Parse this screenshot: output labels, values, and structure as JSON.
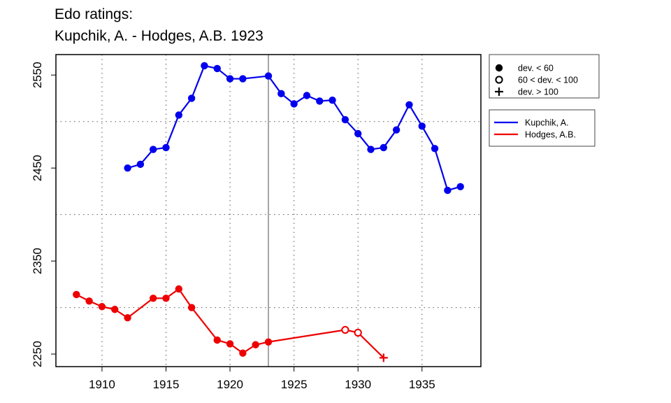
{
  "chart_data": {
    "type": "line",
    "title_lines": [
      "Edo ratings:",
      "Kupchik, A. - Hodges, A.B. 1923"
    ],
    "xlabel": "",
    "ylabel": "",
    "xlim": [
      1906.4,
      1939.6
    ],
    "ylim": [
      2236.5,
      2572
    ],
    "x_ticks": [
      1910,
      1915,
      1920,
      1925,
      1930,
      1935
    ],
    "y_ticks": [
      2250,
      2350,
      2450,
      2550
    ],
    "grid": true,
    "grid_x": [
      1910,
      1915,
      1920,
      1925,
      1930,
      1935
    ],
    "grid_y": [
      2300,
      2400,
      2500
    ],
    "reference_line_x": 1923,
    "marker_legend": [
      {
        "marker": "filled",
        "label": "dev. < 60"
      },
      {
        "marker": "open",
        "label": "60 < dev. < 100"
      },
      {
        "marker": "plus",
        "label": "dev. > 100"
      }
    ],
    "legend_position": "outside-right-top",
    "series": [
      {
        "name": "Kupchik, A.",
        "color": "#0000ee",
        "points": [
          {
            "x": 1912,
            "y": 2450,
            "m": "filled"
          },
          {
            "x": 1913,
            "y": 2454,
            "m": "filled"
          },
          {
            "x": 1914,
            "y": 2470,
            "m": "filled"
          },
          {
            "x": 1915,
            "y": 2472,
            "m": "filled"
          },
          {
            "x": 1916,
            "y": 2507,
            "m": "filled"
          },
          {
            "x": 1917,
            "y": 2525,
            "m": "filled"
          },
          {
            "x": 1918,
            "y": 2560,
            "m": "filled"
          },
          {
            "x": 1919,
            "y": 2557,
            "m": "filled"
          },
          {
            "x": 1920,
            "y": 2546,
            "m": "filled"
          },
          {
            "x": 1921,
            "y": 2546,
            "m": "filled"
          },
          {
            "x": 1923,
            "y": 2549,
            "m": "filled"
          },
          {
            "x": 1924,
            "y": 2530,
            "m": "filled"
          },
          {
            "x": 1925,
            "y": 2519,
            "m": "filled"
          },
          {
            "x": 1926,
            "y": 2528,
            "m": "filled"
          },
          {
            "x": 1927,
            "y": 2522,
            "m": "filled"
          },
          {
            "x": 1928,
            "y": 2523,
            "m": "filled"
          },
          {
            "x": 1929,
            "y": 2502,
            "m": "filled"
          },
          {
            "x": 1930,
            "y": 2487,
            "m": "filled"
          },
          {
            "x": 1931,
            "y": 2470,
            "m": "filled"
          },
          {
            "x": 1932,
            "y": 2472,
            "m": "filled"
          },
          {
            "x": 1933,
            "y": 2491,
            "m": "filled"
          },
          {
            "x": 1934,
            "y": 2518,
            "m": "filled"
          },
          {
            "x": 1935,
            "y": 2495,
            "m": "filled"
          },
          {
            "x": 1936,
            "y": 2471,
            "m": "filled"
          },
          {
            "x": 1937,
            "y": 2426,
            "m": "filled"
          },
          {
            "x": 1938,
            "y": 2430,
            "m": "filled"
          }
        ]
      },
      {
        "name": "Hodges, A.B.",
        "color": "#ee0000",
        "points": [
          {
            "x": 1908,
            "y": 2314,
            "m": "filled"
          },
          {
            "x": 1909,
            "y": 2307,
            "m": "filled"
          },
          {
            "x": 1910,
            "y": 2301,
            "m": "filled"
          },
          {
            "x": 1911,
            "y": 2298,
            "m": "filled"
          },
          {
            "x": 1912,
            "y": 2289,
            "m": "filled"
          },
          {
            "x": 1914,
            "y": 2310,
            "m": "filled"
          },
          {
            "x": 1915,
            "y": 2310,
            "m": "filled"
          },
          {
            "x": 1916,
            "y": 2320,
            "m": "filled"
          },
          {
            "x": 1917,
            "y": 2300,
            "m": "filled"
          },
          {
            "x": 1919,
            "y": 2265,
            "m": "filled"
          },
          {
            "x": 1920,
            "y": 2261,
            "m": "filled"
          },
          {
            "x": 1921,
            "y": 2251,
            "m": "filled"
          },
          {
            "x": 1922,
            "y": 2260,
            "m": "filled"
          },
          {
            "x": 1923,
            "y": 2263,
            "m": "filled"
          },
          {
            "x": 1929,
            "y": 2276,
            "m": "open"
          },
          {
            "x": 1930,
            "y": 2273,
            "m": "open"
          },
          {
            "x": 1932,
            "y": 2246,
            "m": "plus"
          }
        ]
      }
    ]
  }
}
